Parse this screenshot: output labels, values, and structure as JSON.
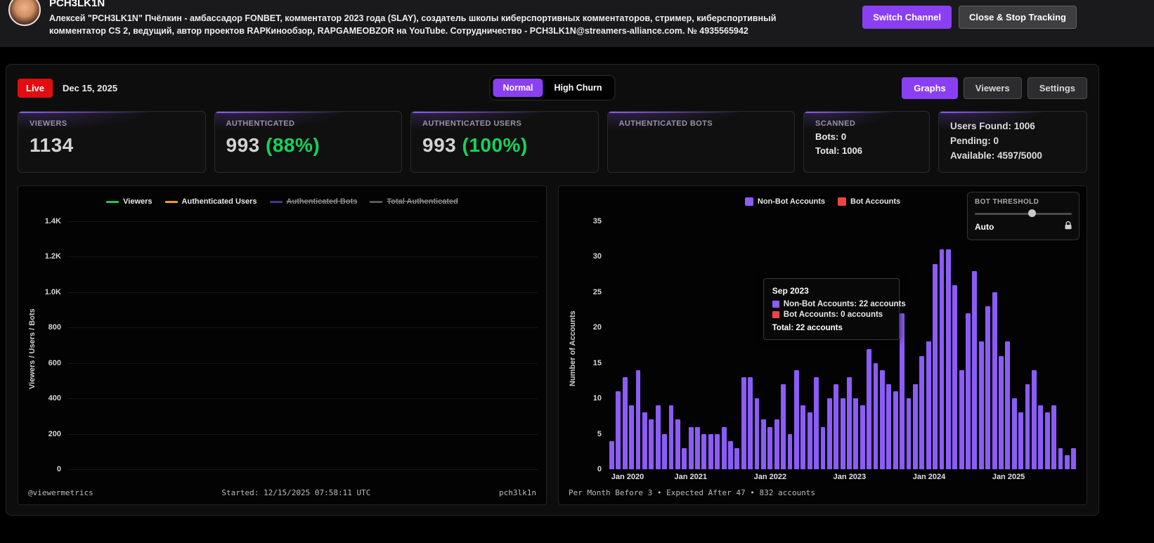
{
  "colors": {
    "accent_purple": "#8a3ff2",
    "bar_purple": "#8b5cf6",
    "live_red": "#e10d11",
    "green": "#16d35a",
    "bot_red": "#ef4444"
  },
  "header": {
    "channel_name": "PCH3LK1N",
    "description_line1": "Алексей \"PCH3LK1N\" Пчёлкин - амбассадор FONBET, комментатор 2023 года (SLAY), создатель школы киберспортивных комментаторов, стример, киберспортивный",
    "description_line2": "комментатор CS 2, ведущий, автор проектов RAPКинообзор, RAPGAMEOBZOR на YouTube. Сотрудничество - PCH3LK1N@streamers-alliance.com. № 4935565942",
    "switch_channel_label": "Switch Channel",
    "close_label": "Close & Stop Tracking"
  },
  "toolbar": {
    "live_label": "Live",
    "date": "Dec 15, 2025",
    "mode_normal": "Normal",
    "mode_high_churn": "High Churn",
    "tab_graphs": "Graphs",
    "tab_viewers": "Viewers",
    "tab_settings": "Settings"
  },
  "stats": {
    "viewers": {
      "label": "VIEWERS",
      "value": "1134"
    },
    "authenticated": {
      "label": "AUTHENTICATED",
      "value": "993",
      "pct": "(88%)"
    },
    "auth_users": {
      "label": "AUTHENTICATED USERS",
      "value": "993",
      "pct": "(100%)"
    },
    "auth_bots": {
      "label": "AUTHENTICATED BOTS",
      "value": ""
    },
    "scanned": {
      "label": "SCANNED",
      "bots_line": "Bots: 0",
      "total_line": "Total: 1006"
    },
    "summary": {
      "users_found": "Users Found: 1006",
      "pending": "Pending: 0",
      "available": "Available: 4597/5000"
    }
  },
  "left_chart": {
    "legend": [
      {
        "label": "Viewers",
        "color": "#22c55e",
        "disabled": false
      },
      {
        "label": "Authenticated Users",
        "color": "#f59e0b",
        "disabled": false
      },
      {
        "label": "Authenticated Bots",
        "color": "#8b5cf6",
        "disabled": true
      },
      {
        "label": "Total Authenticated",
        "color": "#9ca3af",
        "disabled": true
      }
    ],
    "y_ticks": [
      "1.4K",
      "1.2K",
      "1.0K",
      "800",
      "600",
      "400",
      "200",
      "0"
    ],
    "y_axis_label": "Viewers / Users / Bots",
    "footer_left": "@viewermetrics",
    "footer_center": "Started: 12/15/2025 07:58:11 UTC",
    "footer_right": "pch3lk1n"
  },
  "right_chart": {
    "threshold": {
      "label": "BOT THRESHOLD",
      "value": "Auto",
      "lock_icon": "lock-icon"
    },
    "tooltip": {
      "title": "Sep 2023",
      "rows": [
        {
          "color": "#8b5cf6",
          "text": "Non-Bot Accounts: 22 accounts"
        },
        {
          "color": "#ef4444",
          "text": "Bot Accounts: 0 accounts"
        }
      ],
      "total": "Total: 22 accounts",
      "month_index": 44
    },
    "footer": "Per Month Before 3 • Expected After 47 • 832 accounts"
  },
  "chart_data": {
    "type": "bar",
    "title": "",
    "ylabel": "Number of Accounts",
    "ylim": [
      0,
      35
    ],
    "y_ticks": [
      0,
      5,
      10,
      15,
      20,
      25,
      30,
      35
    ],
    "x_start_month": "Jan 2020",
    "x_tick_labels": [
      "Jan 2020",
      "Jan 2021",
      "Jan 2022",
      "Jan 2023",
      "Jan 2024",
      "Jan 2025"
    ],
    "months_per_tick": 12,
    "grid": false,
    "legend_position": "top-center",
    "series": [
      {
        "name": "Non-Bot Accounts",
        "color": "#8b5cf6",
        "values": [
          4,
          11,
          13,
          9,
          14,
          8,
          7,
          9,
          5,
          9,
          7,
          3,
          6,
          6,
          5,
          5,
          5,
          6,
          4,
          3,
          13,
          13,
          10,
          7,
          6,
          7,
          12,
          5,
          14,
          9,
          8,
          13,
          6,
          10,
          12,
          10,
          13,
          10,
          9,
          17,
          15,
          14,
          12,
          11,
          22,
          10,
          12,
          16,
          18,
          29,
          31,
          31,
          26,
          14,
          22,
          28,
          18,
          23,
          25,
          16,
          18,
          10,
          8,
          12,
          14,
          9,
          8,
          9,
          3,
          2,
          3
        ]
      },
      {
        "name": "Bot Accounts",
        "color": "#ef4444",
        "values": [
          0,
          0,
          0,
          0,
          0,
          0,
          0,
          0,
          0,
          0,
          0,
          0,
          0,
          0,
          0,
          0,
          0,
          0,
          0,
          0,
          0,
          0,
          0,
          0,
          0,
          0,
          0,
          0,
          0,
          0,
          0,
          0,
          0,
          0,
          0,
          0,
          0,
          0,
          0,
          0,
          0,
          0,
          0,
          0,
          0,
          0,
          0,
          0,
          0,
          0,
          0,
          0,
          0,
          0,
          0,
          0,
          0,
          0,
          0,
          0,
          0,
          0,
          0,
          0,
          0,
          0,
          0,
          0,
          0,
          0,
          0
        ]
      }
    ],
    "total_accounts": 832
  }
}
